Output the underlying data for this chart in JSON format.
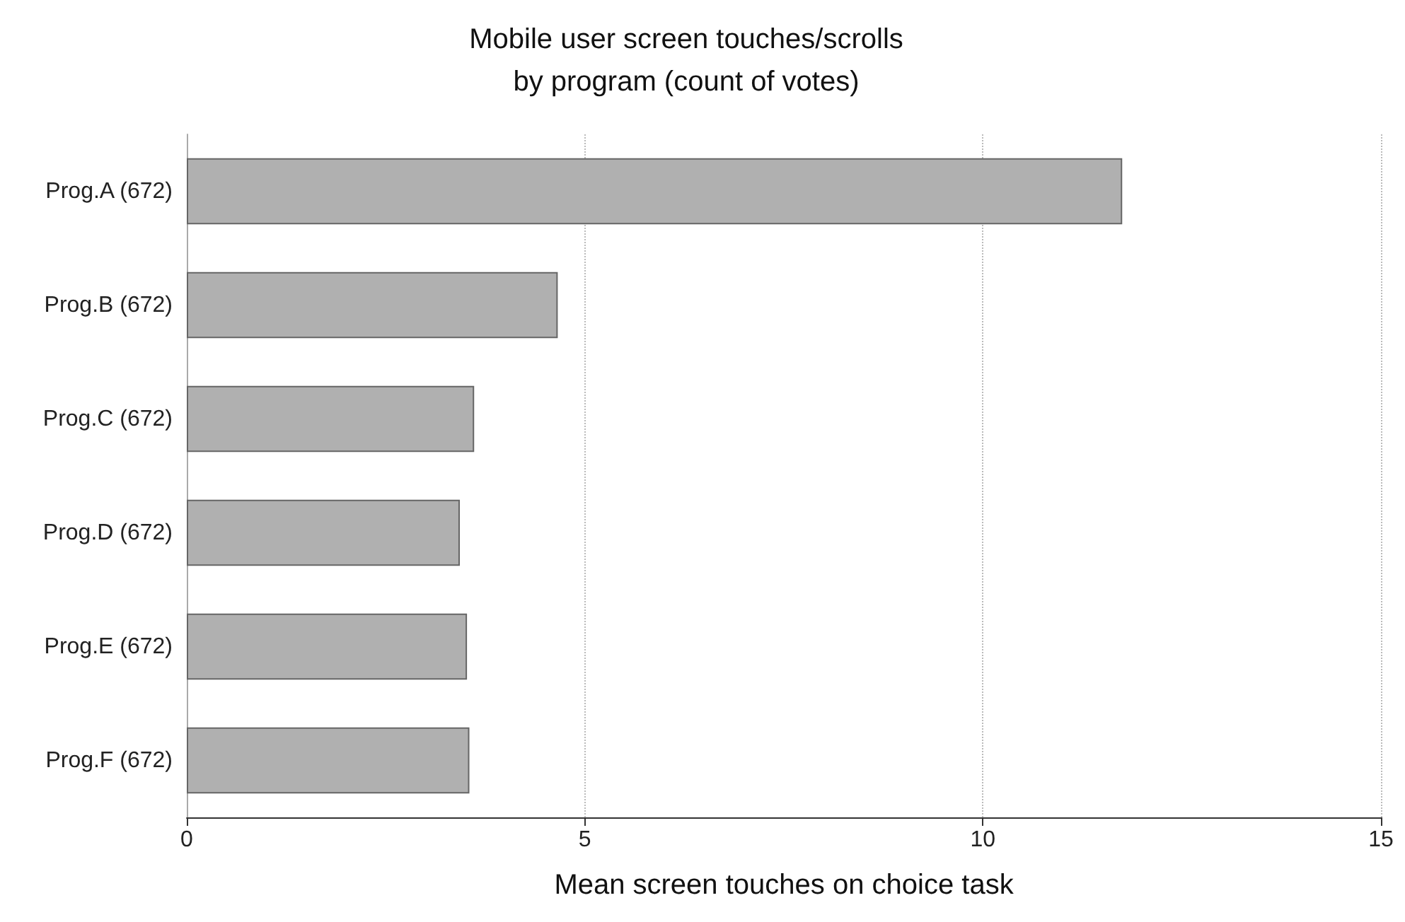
{
  "chart_data": {
    "type": "bar",
    "orientation": "horizontal",
    "title": "Mobile user screen touches/scrolls\nby program (count of votes)",
    "xlabel": "Mean screen touches on choice task",
    "categories": [
      "Prog.A (672)",
      "Prog.B (672)",
      "Prog.C (672)",
      "Prog.D (672)",
      "Prog.E (672)",
      "Prog.F (672)"
    ],
    "values": [
      11.75,
      4.66,
      3.61,
      3.43,
      3.52,
      3.55
    ],
    "color": "#b0b0b0",
    "xlim": [
      0,
      15
    ],
    "xticks": [
      0,
      5,
      10,
      15
    ],
    "grid": "x"
  }
}
